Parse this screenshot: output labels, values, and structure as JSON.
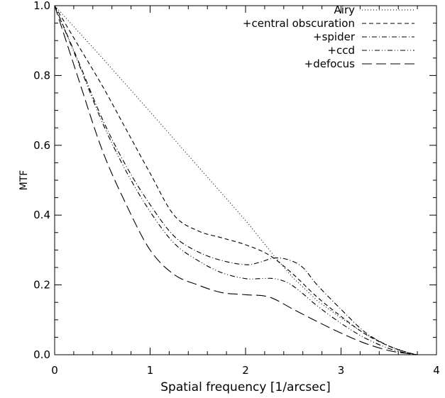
{
  "chart_data": {
    "type": "line",
    "title": "",
    "xlabel": "Spatial frequency [1/arcsec]",
    "ylabel": "MTF",
    "xlim": [
      0,
      4
    ],
    "ylim": [
      0,
      1
    ],
    "xticks": [
      0,
      1,
      2,
      3,
      4
    ],
    "xtick_labels": [
      "0",
      "1",
      "2",
      "3",
      "4"
    ],
    "yticks": [
      0.0,
      0.2,
      0.4,
      0.6,
      0.8,
      1.0
    ],
    "ytick_labels": [
      "0.0",
      "0.2",
      "0.4",
      "0.6",
      "0.8",
      "1.0"
    ],
    "grid": false,
    "legend_position": "top-right",
    "series": [
      {
        "name": "Airy",
        "dash": "dotted",
        "x": [
          0,
          0.5,
          1.0,
          1.5,
          2.0,
          2.3,
          2.5,
          2.75,
          3.0,
          3.25,
          3.5,
          3.7,
          3.8
        ],
        "y": [
          1.0,
          0.85,
          0.696,
          0.54,
          0.385,
          0.283,
          0.22,
          0.155,
          0.105,
          0.06,
          0.025,
          0.006,
          0.0
        ]
      },
      {
        "name": "+central obscuration",
        "dash": "dashed",
        "x": [
          0,
          0.25,
          0.5,
          0.75,
          1.0,
          1.25,
          1.5,
          1.75,
          2.0,
          2.25,
          2.5,
          2.75,
          3.0,
          3.25,
          3.5,
          3.7,
          3.8
        ],
        "y": [
          1.0,
          0.885,
          0.77,
          0.645,
          0.52,
          0.4,
          0.355,
          0.335,
          0.315,
          0.285,
          0.23,
          0.165,
          0.11,
          0.06,
          0.025,
          0.006,
          0.0
        ]
      },
      {
        "name": "+spider",
        "dash": "dash-dot",
        "x": [
          0,
          0.25,
          0.5,
          0.75,
          1.0,
          1.25,
          1.5,
          1.75,
          2.0,
          2.15,
          2.3,
          2.45,
          2.6,
          2.75,
          3.0,
          3.25,
          3.5,
          3.7,
          3.8
        ],
        "y": [
          1.0,
          0.84,
          0.675,
          0.54,
          0.43,
          0.34,
          0.295,
          0.27,
          0.258,
          0.265,
          0.277,
          0.272,
          0.25,
          0.2,
          0.13,
          0.065,
          0.025,
          0.006,
          0.0
        ]
      },
      {
        "name": "+ccd",
        "dash": "dash-dot-dot",
        "x": [
          0,
          0.25,
          0.5,
          0.75,
          1.0,
          1.25,
          1.5,
          1.75,
          2.0,
          2.15,
          2.3,
          2.45,
          2.6,
          2.75,
          3.0,
          3.25,
          3.5,
          3.7,
          3.8
        ],
        "y": [
          1.0,
          0.835,
          0.665,
          0.525,
          0.41,
          0.32,
          0.27,
          0.235,
          0.218,
          0.218,
          0.218,
          0.205,
          0.175,
          0.14,
          0.09,
          0.048,
          0.018,
          0.004,
          0.0
        ]
      },
      {
        "name": "+defocus",
        "dash": "long-dash",
        "x": [
          0,
          0.25,
          0.5,
          0.75,
          1.0,
          1.25,
          1.5,
          1.75,
          2.0,
          2.25,
          2.5,
          2.75,
          3.0,
          3.25,
          3.5,
          3.7,
          3.8
        ],
        "y": [
          1.0,
          0.79,
          0.585,
          0.43,
          0.3,
          0.23,
          0.2,
          0.178,
          0.172,
          0.165,
          0.13,
          0.095,
          0.062,
          0.033,
          0.012,
          0.003,
          0.0
        ]
      }
    ]
  }
}
